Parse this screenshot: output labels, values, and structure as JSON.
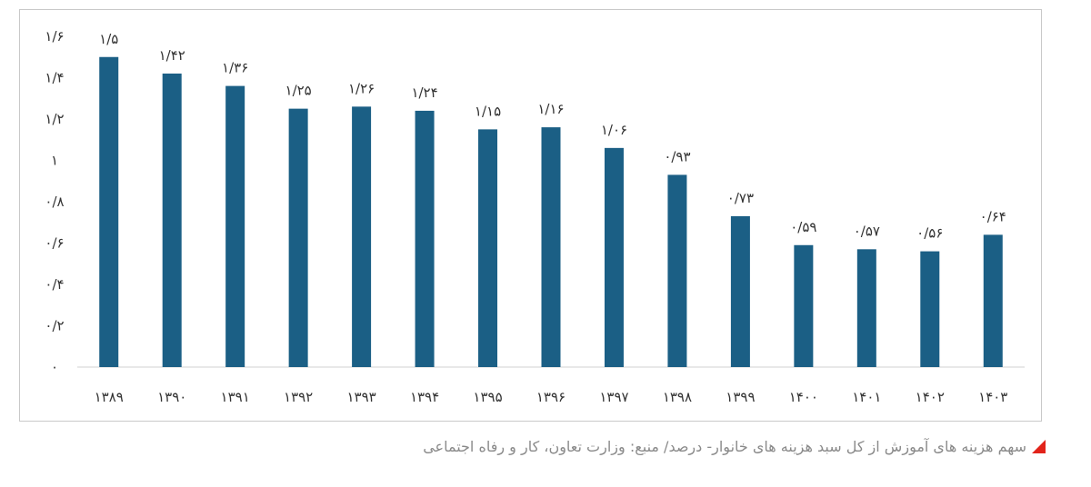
{
  "chart_data": {
    "type": "bar",
    "categories": [
      "۱۳۸۹",
      "۱۳۹۰",
      "۱۳۹۱",
      "۱۳۹۲",
      "۱۳۹۳",
      "۱۳۹۴",
      "۱۳۹۵",
      "۱۳۹۶",
      "۱۳۹۷",
      "۱۳۹۸",
      "۱۳۹۹",
      "۱۴۰۰",
      "۱۴۰۱",
      "۱۴۰۲",
      "۱۴۰۳"
    ],
    "values": [
      1.5,
      1.42,
      1.36,
      1.25,
      1.26,
      1.24,
      1.15,
      1.16,
      1.06,
      0.93,
      0.73,
      0.59,
      0.57,
      0.56,
      0.64
    ],
    "value_labels": [
      "۱/۵",
      "۱/۴۲",
      "۱/۳۶",
      "۱/۲۵",
      "۱/۲۶",
      "۱/۲۴",
      "۱/۱۵",
      "۱/۱۶",
      "۱/۰۶",
      "۰/۹۳",
      "۰/۷۳",
      "۰/۵۹",
      "۰/۵۷",
      "۰/۵۶",
      "۰/۶۴"
    ],
    "yticks": [
      0,
      0.2,
      0.4,
      0.6,
      0.8,
      1.0,
      1.2,
      1.4,
      1.6
    ],
    "ytick_labels": [
      "۰",
      "۰/۲",
      "۰/۴",
      "۰/۶",
      "۰/۸",
      "۱",
      "۱/۲",
      "۱/۴",
      "۱/۶"
    ],
    "ylim": [
      0,
      1.6
    ],
    "grid": false,
    "colors": {
      "bar": "#1b5f85",
      "axis": "#d0d0d0"
    }
  },
  "caption": {
    "text": "سهم هزینه های آموزش از کل سبد هزینه های خانوار- درصد/ منبع: وزارت تعاون، کار و رفاه اجتماعی",
    "marker_color": "#e2231a"
  }
}
